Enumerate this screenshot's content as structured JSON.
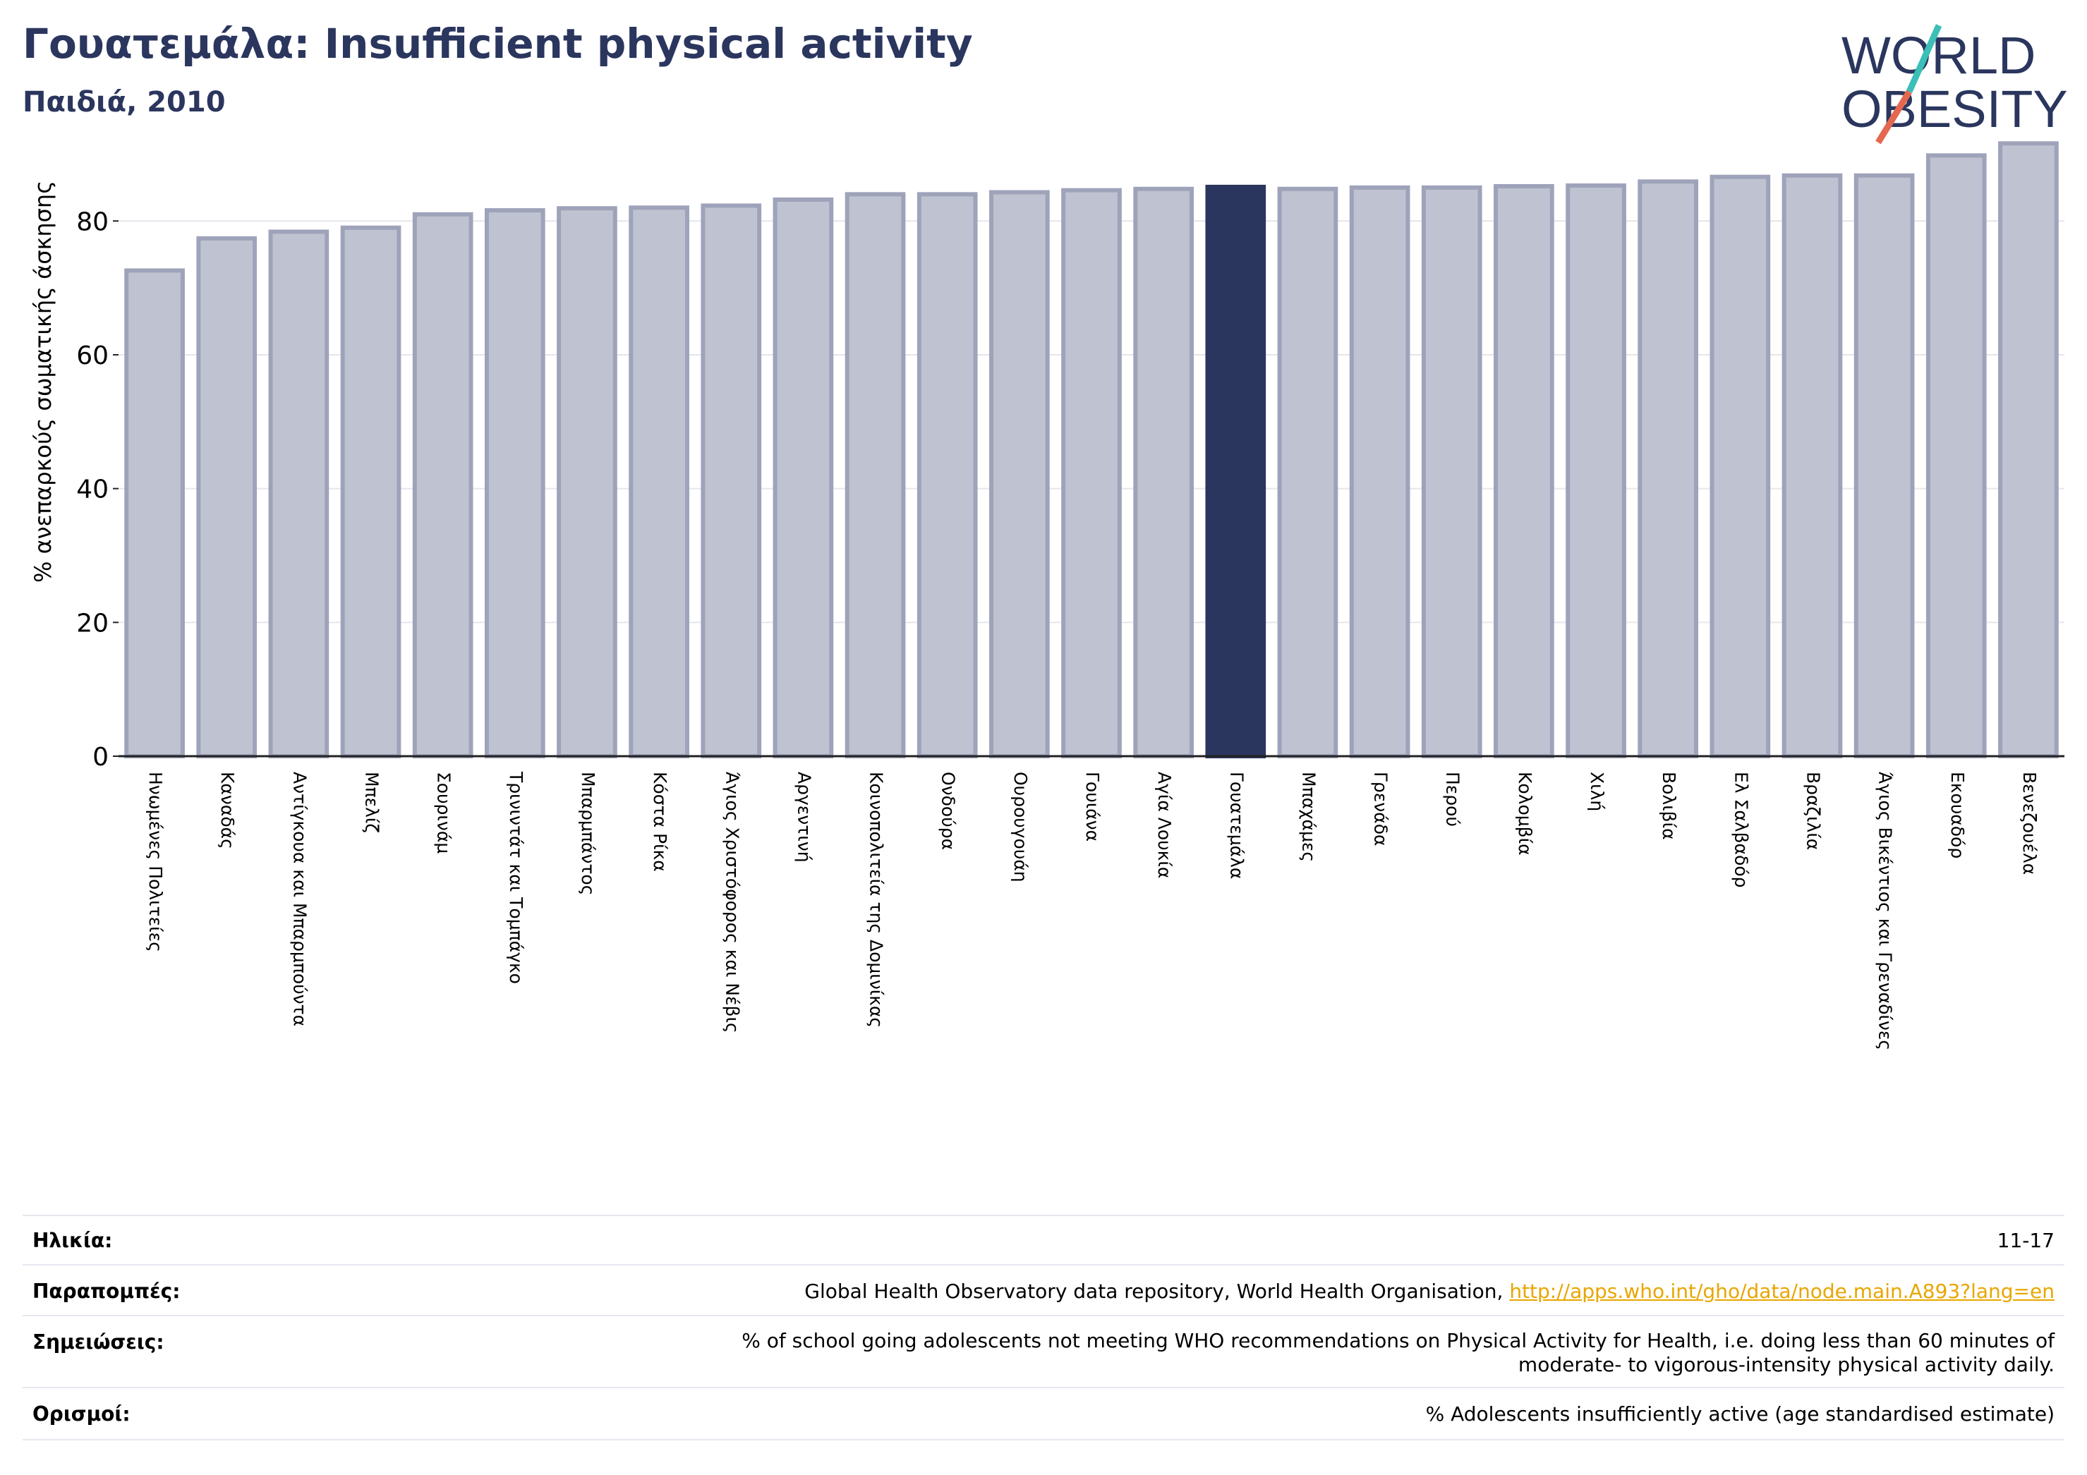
{
  "header": {
    "title": "Γουατεμάλα: Insufficient physical activity",
    "subtitle": "Παιδιά, 2010"
  },
  "logo": {
    "line1": "WORLD",
    "line2": "OBESITY",
    "accent_teal": "#3bbfb6",
    "accent_coral": "#e4674f",
    "text_color": "#2b365e"
  },
  "chart_data": {
    "type": "bar",
    "ylabel": "% ανεπαρκούς σωματικής άσκησης",
    "ylim": [
      0,
      93
    ],
    "yticks": [
      0,
      20,
      40,
      60,
      80
    ],
    "grid": true,
    "highlight": "Γουατεμάλα",
    "colors": {
      "bar": "#bfc2d0",
      "bar_edge": "#9ea3ba",
      "highlight": "#2b365e"
    },
    "categories": [
      "Ηνωμένες Πολιτείες",
      "Καναδάς",
      "Αντίγκουα και Μπαρμπούντα",
      "Μπελίζ",
      "Σουρινάμ",
      "Τρινιντάτ και Τομπάγκο",
      "Μπαρμπάντος",
      "Κόστα Ρίκα",
      "Άγιος Χριστόφορος και Νέβις",
      "Αργεντινή",
      "Κοινοπολιτεία της Δομινίκας",
      "Ονδούρα",
      "Ουρουγουάη",
      "Γουιάνα",
      "Αγία Λουκία",
      "Γουατεμάλα",
      "Μπαχάμες",
      "Γρενάδα",
      "Περού",
      "Κολομβία",
      "Χιλή",
      "Βολιβία",
      "Ελ Σαλβαδόρ",
      "Βραζιλία",
      "Άγιος Βικέντιος και Γρεναδίνες",
      "Εκουαδόρ",
      "Βενεζουέλα"
    ],
    "values": [
      72.6,
      77.4,
      78.4,
      79.0,
      81.0,
      81.6,
      81.9,
      82.0,
      82.3,
      83.2,
      84.0,
      84.0,
      84.3,
      84.6,
      84.8,
      85.1,
      84.8,
      85.0,
      85.0,
      85.2,
      85.3,
      85.9,
      86.6,
      86.8,
      86.8,
      89.8,
      91.6
    ]
  },
  "info": {
    "age_label": "Ηλικία:",
    "age_value": "11-17",
    "refs_label": "Παραπομπές:",
    "refs_value": "Global Health Observatory data repository, World Health Organisation, ",
    "refs_link": "http://apps.who.int/gho/data/node.main.A893?lang=en",
    "notes_label": "Σημειώσεις:",
    "notes_value_1": "% of school going adolescents not meeting WHO recommendations on Physical Activity for Health, i.e. doing less than 60 minutes of",
    "notes_value_2": "moderate- to vigorous-intensity physical activity daily.",
    "defs_label": "Ορισμοί:",
    "defs_value": "% Adolescents insufficiently active (age standardised estimate)"
  }
}
